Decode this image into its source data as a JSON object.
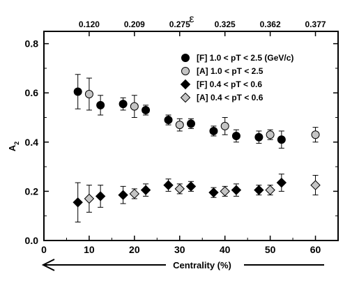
{
  "chart_data": {
    "type": "scatter",
    "xlabel": "Centrality (%)",
    "ylabel": "A2",
    "top_axis_label": "ε",
    "xlim": [
      0,
      65
    ],
    "ylim": [
      0,
      0.85
    ],
    "x_ticks": [
      0,
      10,
      20,
      30,
      40,
      50,
      60
    ],
    "y_ticks": [
      0.0,
      0.2,
      0.4,
      0.6,
      0.8
    ],
    "x_tick_labels": [
      "0",
      "10",
      "20",
      "30",
      "40",
      "50",
      "60"
    ],
    "y_tick_labels": [
      "0.0",
      "0.2",
      "0.4",
      "0.6",
      "0.8"
    ],
    "top_ticks": [
      {
        "x": 10,
        "label": "0.120"
      },
      {
        "x": 20,
        "label": "0.209"
      },
      {
        "x": 30,
        "label": "0.275"
      },
      {
        "x": 40,
        "label": "0.325"
      },
      {
        "x": 50,
        "label": "0.362"
      },
      {
        "x": 60,
        "label": "0.377"
      }
    ],
    "grid": false,
    "legend_position": "top-right",
    "series": [
      {
        "name": "[F] 1.0 < pT < 2.5 (GeV/c)",
        "marker": "circle",
        "color": "#000000",
        "x": [
          7.5,
          12.5,
          17.5,
          22.5,
          27.5,
          32.5,
          37.5,
          42.5,
          47.5,
          52.5
        ],
        "y": [
          0.605,
          0.55,
          0.555,
          0.53,
          0.49,
          0.475,
          0.445,
          0.425,
          0.42,
          0.41
        ],
        "err": [
          0.07,
          0.04,
          0.025,
          0.02,
          0.02,
          0.02,
          0.02,
          0.025,
          0.025,
          0.035
        ]
      },
      {
        "name": "[A] 1.0 < pT < 2.5",
        "marker": "circle",
        "color": "#c4c4c4",
        "x": [
          10,
          20,
          30,
          40,
          50,
          60
        ],
        "y": [
          0.595,
          0.545,
          0.47,
          0.465,
          0.43,
          0.43
        ],
        "err": [
          0.065,
          0.045,
          0.025,
          0.035,
          0.02,
          0.03
        ]
      },
      {
        "name": "[F] 0.4 < pT < 0.6",
        "marker": "diamond",
        "color": "#000000",
        "x": [
          7.5,
          12.5,
          17.5,
          22.5,
          27.5,
          32.5,
          37.5,
          42.5,
          47.5,
          52.5
        ],
        "y": [
          0.155,
          0.18,
          0.185,
          0.205,
          0.225,
          0.22,
          0.195,
          0.205,
          0.205,
          0.235
        ],
        "err": [
          0.08,
          0.045,
          0.035,
          0.025,
          0.025,
          0.02,
          0.02,
          0.025,
          0.02,
          0.035
        ]
      },
      {
        "name": "[A] 0.4 < pT < 0.6",
        "marker": "diamond",
        "color": "#c4c4c4",
        "x": [
          10,
          20,
          30,
          40,
          50,
          60
        ],
        "y": [
          0.17,
          0.19,
          0.21,
          0.2,
          0.205,
          0.225
        ],
        "err": [
          0.055,
          0.02,
          0.02,
          0.02,
          0.02,
          0.04
        ]
      }
    ]
  }
}
